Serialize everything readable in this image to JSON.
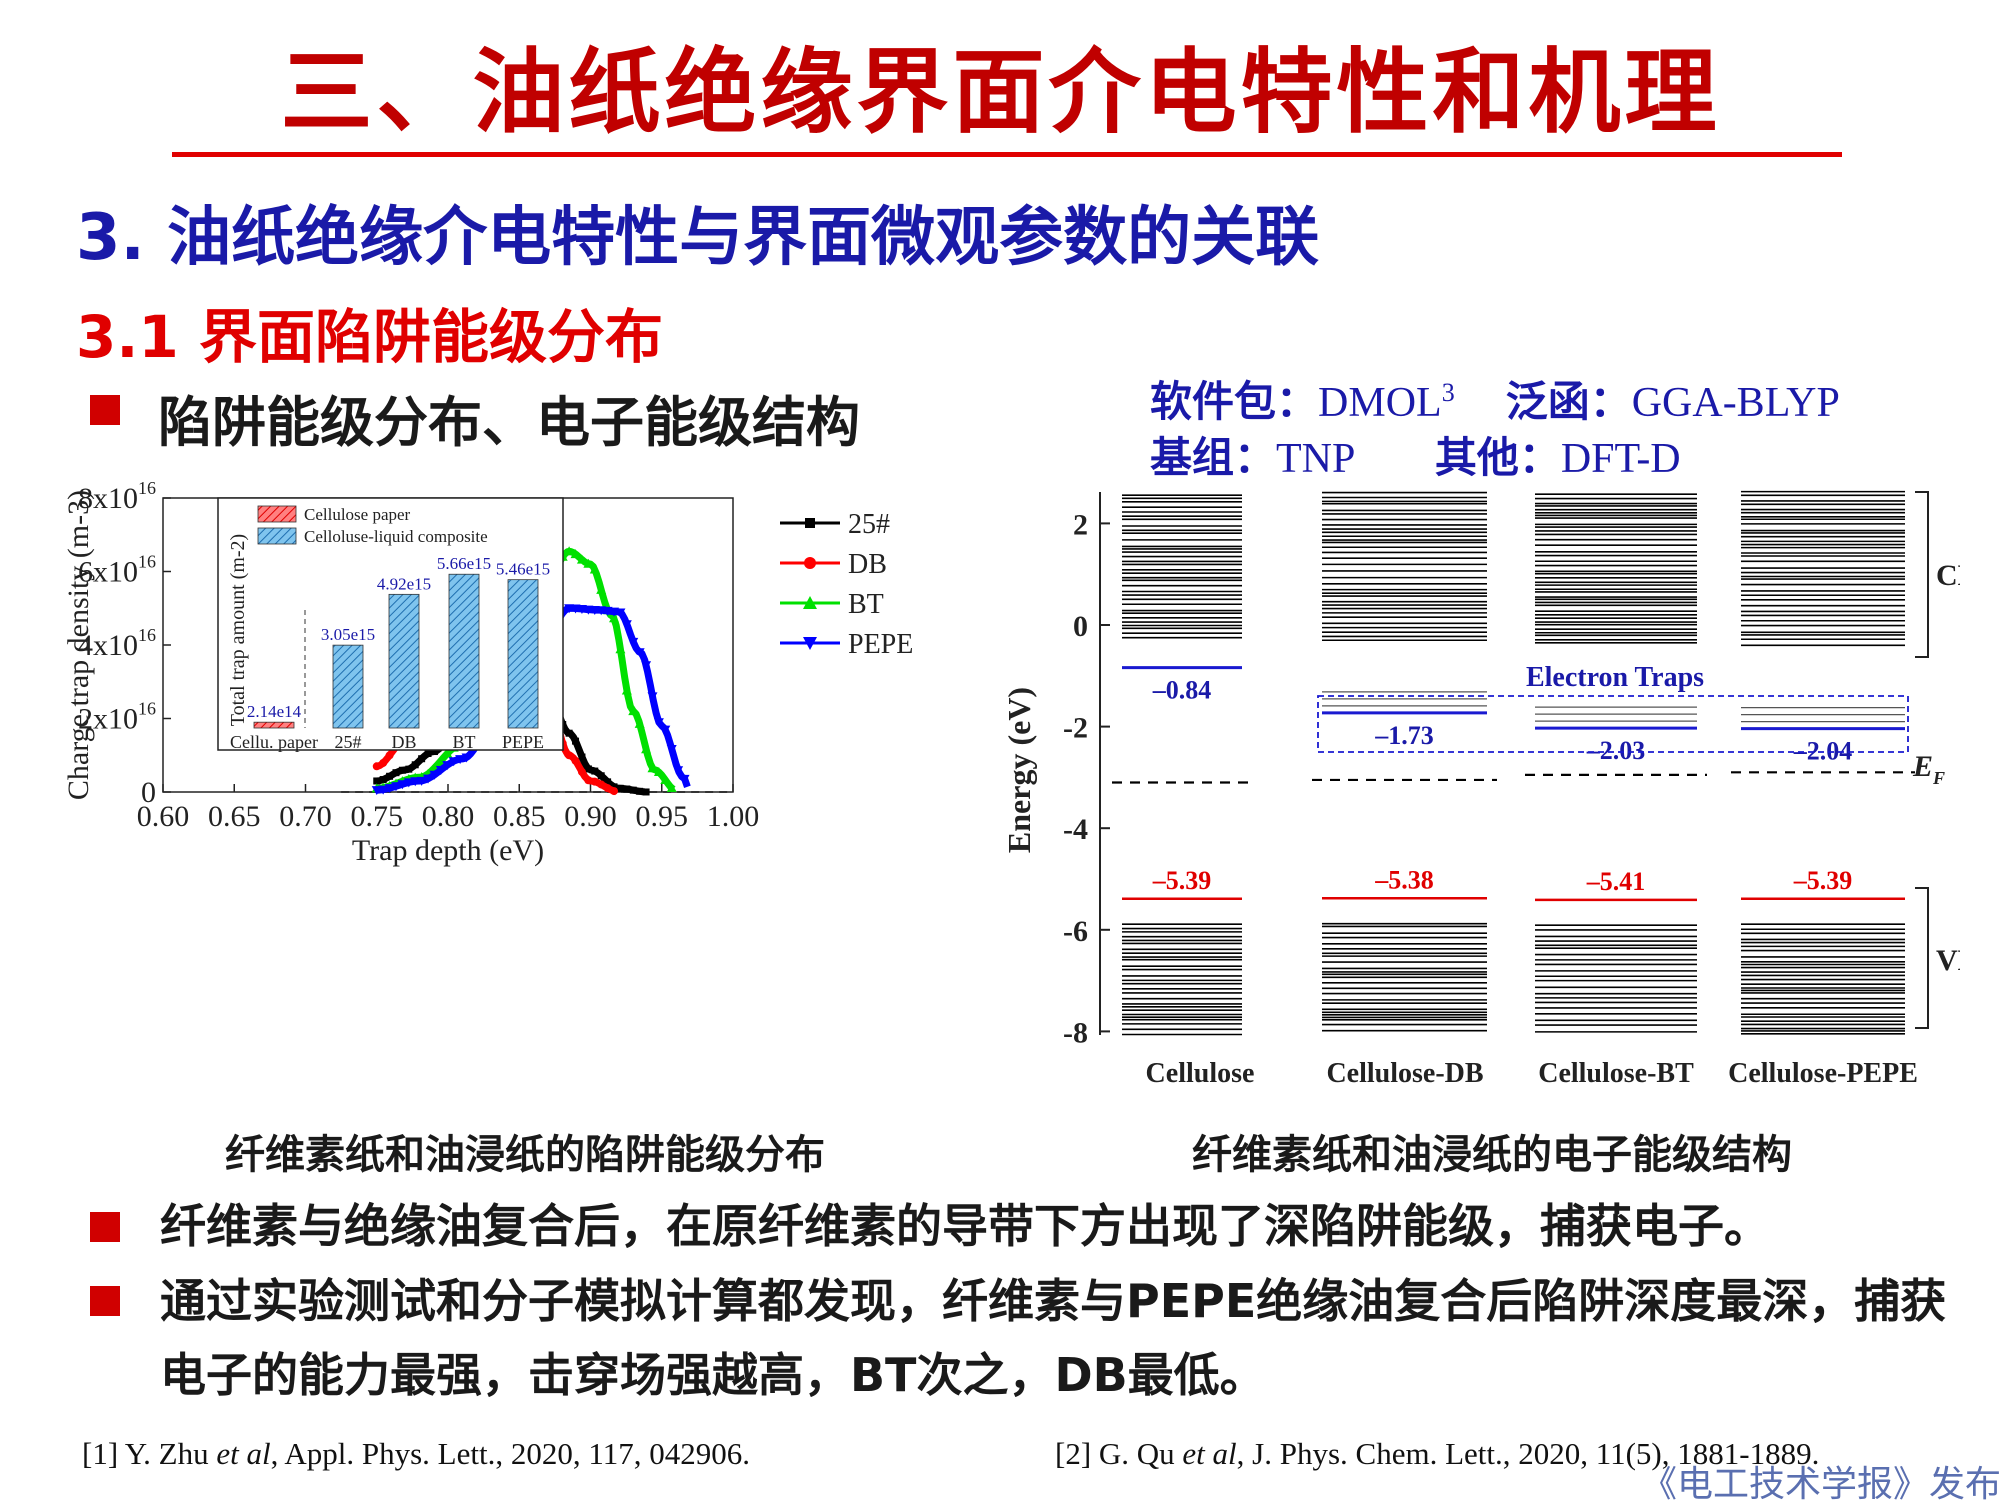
{
  "title": "三、油纸绝缘界面介电特性和机理",
  "section": "3. 油纸绝缘介电特性与界面微观参数的关联",
  "subsection": "3.1 界面陷阱能级分布",
  "bullet_heading": "陷阱能级分布、电子能级结构",
  "software": {
    "pkg_label": "软件包：",
    "pkg_value": "DMOL",
    "pkg_sup": "3",
    "func_label": "泛函：",
    "func_value": "GGA-BLYP",
    "basis_label": "基组：",
    "basis_value": "TNP",
    "other_label": "其他：",
    "other_value": "DFT-D"
  },
  "captions": {
    "left": "纤维素纸和油浸纸的陷阱能级分布",
    "right": "纤维素纸和油浸纸的电子能级结构"
  },
  "bullets": [
    "纤维素与绝缘油复合后，在原纤维素的导带下方出现了深陷阱能级，捕获电子。",
    "通过实验测试和分子模拟计算都发现，纤维素与PEPE绝缘油复合后陷阱深度最深，捕获电子的能力最强，击穿场强越高，BT次之，DB最低。"
  ],
  "refs": {
    "r1_pre": "[1] Y. Zhu ",
    "r1_it": "et al",
    "r1_post": ", Appl. Phys. Lett., 2020, 117, 042906.",
    "r2_pre": "[2] G. Qu ",
    "r2_it": "et al",
    "r2_post": ", J. Phys. Chem. Lett., 2020, 11(5), 1881-1889."
  },
  "watermark": "《电工技术学报》发布",
  "chart_data": [
    {
      "type": "line",
      "xlabel": "Trap depth (eV)",
      "ylabel": "Charge trap density (m-3)",
      "xlim": [
        0.6,
        1.0
      ],
      "ylim": [
        0,
        8e+16
      ],
      "x_ticks": [
        "0.60",
        "0.65",
        "0.70",
        "0.75",
        "0.80",
        "0.85",
        "0.90",
        "0.95",
        "1.00"
      ],
      "y_ticks": [
        "0",
        "2x10",
        "4x10",
        "6x10",
        "8x10"
      ],
      "y_tick_sup": "16",
      "legend_position": "top-right",
      "series": [
        {
          "name": "25#",
          "color": "#000000",
          "marker": "square",
          "points": [
            [
              0.75,
              0.3
            ],
            [
              0.77,
              0.6
            ],
            [
              0.79,
              1.1
            ],
            [
              0.81,
              1.9
            ],
            [
              0.825,
              2.8
            ],
            [
              0.84,
              3.7
            ],
            [
              0.85,
              3.5
            ],
            [
              0.87,
              2.7
            ],
            [
              0.885,
              1.6
            ],
            [
              0.9,
              0.6
            ],
            [
              0.92,
              0.1
            ],
            [
              0.94,
              0.0
            ]
          ]
        },
        {
          "name": "DB",
          "color": "#ff0000",
          "marker": "circle",
          "points": [
            [
              0.75,
              0.7
            ],
            [
              0.77,
              1.4
            ],
            [
              0.79,
              2.7
            ],
            [
              0.81,
              4.6
            ],
            [
              0.82,
              5.7
            ],
            [
              0.83,
              6.25
            ],
            [
              0.84,
              5.5
            ],
            [
              0.855,
              4.3
            ],
            [
              0.87,
              2.5
            ],
            [
              0.885,
              1.0
            ],
            [
              0.9,
              0.3
            ],
            [
              0.92,
              0.0
            ]
          ]
        },
        {
          "name": "BT",
          "color": "#00e000",
          "marker": "triangle",
          "points": [
            [
              0.75,
              0.1
            ],
            [
              0.78,
              0.4
            ],
            [
              0.81,
              1.3
            ],
            [
              0.84,
              3.2
            ],
            [
              0.865,
              5.4
            ],
            [
              0.885,
              6.55
            ],
            [
              0.9,
              6.2
            ],
            [
              0.915,
              4.8
            ],
            [
              0.93,
              2.2
            ],
            [
              0.945,
              0.6
            ],
            [
              0.96,
              0.05
            ]
          ]
        },
        {
          "name": "PEPE",
          "color": "#0000ff",
          "marker": "triangle-down",
          "points": [
            [
              0.75,
              0.05
            ],
            [
              0.78,
              0.3
            ],
            [
              0.81,
              0.9
            ],
            [
              0.84,
              2.3
            ],
            [
              0.865,
              4.0
            ],
            [
              0.885,
              5.0
            ],
            [
              0.905,
              4.95
            ],
            [
              0.92,
              4.9
            ],
            [
              0.935,
              3.8
            ],
            [
              0.95,
              1.8
            ],
            [
              0.965,
              0.4
            ],
            [
              0.97,
              0.0
            ]
          ]
        }
      ],
      "inset": {
        "type": "bar",
        "ylabel": "Total trap amount (m-2)",
        "legend": [
          "Cellulose paper",
          "Celloluse-liquid composite"
        ],
        "categories": [
          "Cellu. paper",
          "25#",
          "DB",
          "BT",
          "PEPE"
        ],
        "values": [
          214000000000000.0,
          3050000000000000.0,
          4920000000000000.0,
          5660000000000000.0,
          5460000000000000.0
        ],
        "labels": [
          "2.14e14",
          "3.05e15",
          "4.92e15",
          "5.66e15",
          "5.46e15"
        ],
        "colors": [
          "#ff5050",
          "#3aa0e0",
          "#3aa0e0",
          "#3aa0e0",
          "#3aa0e0"
        ]
      }
    },
    {
      "type": "energy-level",
      "ylabel": "Energy (eV)",
      "ylim": [
        -8,
        2.7
      ],
      "y_ticks": [
        "2",
        "0",
        "-2",
        "-4",
        "-6",
        "-8"
      ],
      "categories": [
        "Cellulose",
        "Cellulose-DB",
        "Cellulose-BT",
        "Cellulose-PEPE"
      ],
      "trap_levels": [
        -0.84,
        -1.73,
        -2.03,
        -2.04
      ],
      "trap_labels": [
        "–0.84",
        "–1.73",
        "–2.03",
        "–2.04"
      ],
      "vb_top": [
        -5.39,
        -5.38,
        -5.41,
        -5.39
      ],
      "vb_labels": [
        "–5.39",
        "–5.38",
        "–5.41",
        "–5.39"
      ],
      "fermi": [
        -3.1,
        -3.05,
        -2.95,
        -2.9
      ],
      "cb_label": "CB",
      "vb_label": "VB",
      "ef_label": "E",
      "ef_sub": "F",
      "trap_box_label": "Electron Traps"
    }
  ]
}
